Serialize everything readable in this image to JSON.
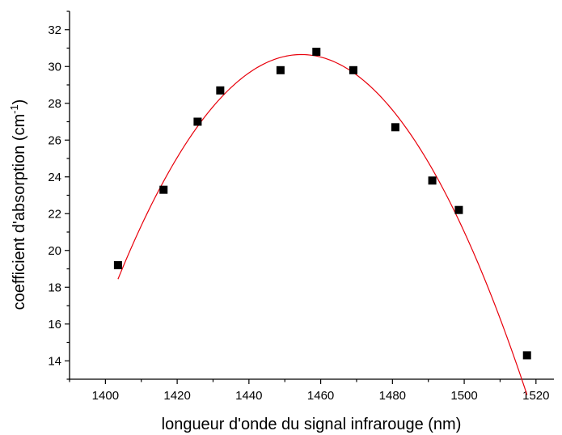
{
  "chart_data": {
    "type": "scatter",
    "title": "",
    "xlabel": "longueur d'onde du signal infrarouge (nm)",
    "ylabel_main": "coefficient d'absorption (cm",
    "ylabel_sup": "-1",
    "ylabel_tail": ")",
    "xlim": [
      1390,
      1525
    ],
    "ylim": [
      13,
      33
    ],
    "x_ticks": [
      1400,
      1420,
      1440,
      1460,
      1480,
      1500,
      1520
    ],
    "y_ticks": [
      14,
      16,
      18,
      20,
      22,
      24,
      26,
      28,
      30,
      32
    ],
    "grid": false,
    "legend": "none",
    "points": [
      {
        "x": 1403.5,
        "y": 19.2
      },
      {
        "x": 1416.2,
        "y": 23.3
      },
      {
        "x": 1425.7,
        "y": 27.0
      },
      {
        "x": 1432.0,
        "y": 28.7
      },
      {
        "x": 1448.8,
        "y": 29.8
      },
      {
        "x": 1458.8,
        "y": 30.8
      },
      {
        "x": 1469.1,
        "y": 29.8
      },
      {
        "x": 1480.8,
        "y": 26.7
      },
      {
        "x": 1491.1,
        "y": 23.8
      },
      {
        "x": 1498.5,
        "y": 22.2
      },
      {
        "x": 1517.5,
        "y": 14.3
      }
    ],
    "fit_curve": {
      "x_range": [
        1403.5,
        1517.5
      ],
      "peak_x": 1454.6,
      "peak_y": 30.65,
      "curvature": -0.004676
    },
    "colors": {
      "points": "#000000",
      "fit": "#e8000b",
      "axes": "#000000"
    }
  }
}
